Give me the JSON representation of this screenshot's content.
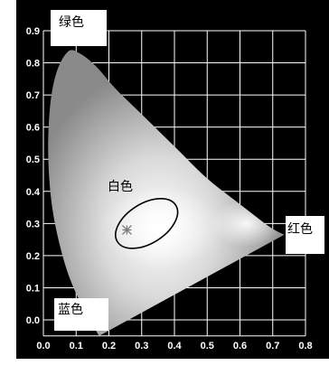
{
  "chart_data": {
    "type": "scatter",
    "title": "",
    "xlabel": "",
    "ylabel": "",
    "xlim": [
      0,
      0.8
    ],
    "ylim": [
      -0.05,
      0.9
    ],
    "grid": true,
    "x_ticks": [
      "0.0",
      "0.1",
      "0.2",
      "0.3",
      "0.4",
      "0.5",
      "0.6",
      "0.7",
      "0.8"
    ],
    "y_ticks": [
      "0.0",
      "0.1",
      "0.2",
      "0.3",
      "0.4",
      "0.5",
      "0.6",
      "0.7",
      "0.8",
      "0.9"
    ],
    "region_labels": {
      "green": "绿色",
      "white": "白色",
      "red": "红色",
      "blue": "蓝色"
    },
    "locus": [
      [
        0.17,
        -0.05
      ],
      [
        0.12,
        0.04
      ],
      [
        0.07,
        0.16
      ],
      [
        0.03,
        0.33
      ],
      [
        0.015,
        0.5
      ],
      [
        0.02,
        0.66
      ],
      [
        0.04,
        0.77
      ],
      [
        0.075,
        0.835
      ],
      [
        0.11,
        0.83
      ],
      [
        0.16,
        0.79
      ],
      [
        0.22,
        0.72
      ],
      [
        0.3,
        0.64
      ],
      [
        0.4,
        0.54
      ],
      [
        0.5,
        0.44
      ],
      [
        0.6,
        0.36
      ],
      [
        0.69,
        0.29
      ],
      [
        0.735,
        0.265
      ]
    ],
    "ellipse": {
      "cx": 0.315,
      "cy": 0.3,
      "rx": 0.105,
      "ry": 0.062,
      "angle_deg": 32
    },
    "point": {
      "x": 0.255,
      "y": 0.28
    }
  }
}
